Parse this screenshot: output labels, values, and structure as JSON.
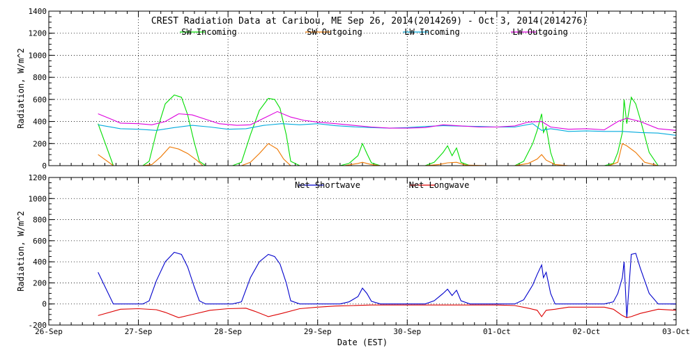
{
  "chart_data": [
    {
      "type": "line",
      "title": "CREST Radiation Data at Caribou, ME   Sep 26, 2014(2014269) - Oct  3, 2014(2014276)",
      "xlabel": "",
      "ylabel": "Radiation, W/m^2",
      "xlim": [
        0,
        7
      ],
      "ylim": [
        0,
        1400
      ],
      "yticks": [
        0,
        200,
        400,
        600,
        800,
        1000,
        1200,
        1400
      ],
      "grid": true,
      "legend": "top",
      "series": [
        {
          "name": "SW Incoming",
          "color": "#00dd00",
          "x": [
            0.55,
            0.72,
            0.9,
            1.05,
            1.12,
            1.2,
            1.3,
            1.4,
            1.48,
            1.55,
            1.62,
            1.68,
            1.75,
            1.85,
            2.05,
            2.15,
            2.25,
            2.35,
            2.45,
            2.52,
            2.58,
            2.65,
            2.7,
            2.8,
            3.0,
            3.25,
            3.35,
            3.45,
            3.5,
            3.55,
            3.6,
            3.7,
            3.9,
            4.2,
            4.3,
            4.4,
            4.45,
            4.5,
            4.55,
            4.6,
            4.7,
            4.9,
            5.2,
            5.3,
            5.4,
            5.45,
            5.5,
            5.52,
            5.55,
            5.6,
            5.65,
            5.7,
            5.8,
            6.1,
            6.2,
            6.3,
            6.35,
            6.4,
            6.42,
            6.45,
            6.5,
            6.55,
            6.6,
            6.7,
            6.8,
            7.0
          ],
          "y": [
            380,
            0,
            0,
            0,
            40,
            300,
            560,
            640,
            620,
            460,
            220,
            40,
            0,
            0,
            0,
            30,
            280,
            500,
            610,
            600,
            520,
            280,
            40,
            0,
            0,
            0,
            20,
            90,
            200,
            110,
            25,
            0,
            0,
            0,
            30,
            120,
            180,
            90,
            160,
            30,
            0,
            0,
            0,
            40,
            200,
            320,
            470,
            300,
            350,
            120,
            0,
            0,
            0,
            0,
            0,
            20,
            120,
            300,
            600,
            380,
            620,
            560,
            420,
            120,
            0,
            0
          ]
        },
        {
          "name": "SW Outgoing",
          "color": "#ee7700",
          "x": [
            0.55,
            0.72,
            0.9,
            1.05,
            1.15,
            1.25,
            1.35,
            1.45,
            1.55,
            1.65,
            1.72,
            1.85,
            2.05,
            2.15,
            2.25,
            2.35,
            2.45,
            2.55,
            2.62,
            2.7,
            2.8,
            3.0,
            3.3,
            3.45,
            3.5,
            3.6,
            3.7,
            3.9,
            4.2,
            4.35,
            4.45,
            4.55,
            4.65,
            4.9,
            5.2,
            5.35,
            5.45,
            5.5,
            5.55,
            5.65,
            5.8,
            6.1,
            6.25,
            6.35,
            6.4,
            6.45,
            6.55,
            6.65,
            6.8,
            7.0
          ],
          "y": [
            100,
            0,
            0,
            0,
            10,
            80,
            170,
            150,
            110,
            50,
            0,
            0,
            0,
            0,
            30,
            110,
            200,
            150,
            60,
            0,
            0,
            0,
            0,
            20,
            30,
            10,
            0,
            0,
            0,
            10,
            25,
            30,
            5,
            0,
            0,
            20,
            60,
            100,
            50,
            10,
            0,
            0,
            0,
            30,
            200,
            180,
            120,
            30,
            0,
            0
          ]
        },
        {
          "name": "LW Incoming",
          "color": "#00aadd",
          "x": [
            0.55,
            0.8,
            1.0,
            1.2,
            1.4,
            1.6,
            1.8,
            2.0,
            2.2,
            2.4,
            2.6,
            2.8,
            3.0,
            3.2,
            3.4,
            3.6,
            3.8,
            4.0,
            4.2,
            4.4,
            4.6,
            4.8,
            5.0,
            5.2,
            5.4,
            5.5,
            5.6,
            5.8,
            6.0,
            6.2,
            6.4,
            6.6,
            6.8,
            7.0
          ],
          "y": [
            370,
            335,
            330,
            320,
            345,
            365,
            350,
            330,
            335,
            365,
            380,
            370,
            380,
            362,
            352,
            345,
            340,
            345,
            355,
            362,
            358,
            355,
            350,
            350,
            380,
            320,
            335,
            310,
            315,
            310,
            310,
            300,
            295,
            275
          ]
        },
        {
          "name": "LW Outgoing",
          "color": "#dd00dd",
          "x": [
            0.55,
            0.7,
            0.8,
            1.0,
            1.15,
            1.3,
            1.45,
            1.6,
            1.75,
            1.9,
            2.1,
            2.25,
            2.4,
            2.55,
            2.7,
            2.85,
            3.0,
            3.2,
            3.4,
            3.6,
            3.8,
            4.0,
            4.2,
            4.4,
            4.6,
            4.8,
            5.0,
            5.2,
            5.35,
            5.5,
            5.6,
            5.8,
            6.0,
            6.2,
            6.35,
            6.45,
            6.6,
            6.8,
            7.0
          ],
          "y": [
            470,
            420,
            385,
            380,
            370,
            400,
            470,
            460,
            420,
            380,
            365,
            370,
            430,
            490,
            440,
            410,
            395,
            380,
            365,
            350,
            340,
            340,
            345,
            370,
            360,
            350,
            350,
            360,
            395,
            400,
            350,
            330,
            335,
            325,
            400,
            430,
            400,
            335,
            320
          ]
        }
      ]
    },
    {
      "type": "line",
      "title": "",
      "xlabel": "Date (EST)",
      "ylabel": "Radiation, W/m^2",
      "xlim": [
        0,
        7
      ],
      "ylim": [
        -200,
        1200
      ],
      "yticks": [
        -200,
        0,
        200,
        400,
        600,
        800,
        1000,
        1200
      ],
      "xticks": [
        "26-Sep",
        "27-Sep",
        "28-Sep",
        "29-Sep",
        "30-Sep",
        "01-Oct",
        "02-Oct",
        "03-Oct"
      ],
      "grid": true,
      "legend": "top",
      "series": [
        {
          "name": "Net Shortwave",
          "color": "#0000cc",
          "x": [
            0.55,
            0.72,
            0.9,
            1.05,
            1.12,
            1.2,
            1.3,
            1.4,
            1.48,
            1.55,
            1.62,
            1.68,
            1.75,
            1.85,
            2.05,
            2.15,
            2.25,
            2.35,
            2.45,
            2.52,
            2.58,
            2.65,
            2.7,
            2.8,
            3.0,
            3.25,
            3.35,
            3.45,
            3.5,
            3.55,
            3.6,
            3.7,
            3.9,
            4.2,
            4.3,
            4.4,
            4.45,
            4.5,
            4.55,
            4.6,
            4.7,
            4.9,
            5.2,
            5.3,
            5.4,
            5.45,
            5.5,
            5.52,
            5.55,
            5.6,
            5.65,
            5.7,
            5.8,
            6.1,
            6.2,
            6.3,
            6.35,
            6.4,
            6.42,
            6.45,
            6.5,
            6.55,
            6.6,
            6.7,
            6.8,
            7.0
          ],
          "y": [
            300,
            0,
            0,
            0,
            30,
            220,
            400,
            490,
            470,
            350,
            170,
            30,
            0,
            0,
            0,
            20,
            250,
            400,
            470,
            450,
            380,
            200,
            30,
            0,
            0,
            0,
            20,
            70,
            150,
            100,
            25,
            0,
            0,
            0,
            30,
            100,
            140,
            80,
            130,
            30,
            0,
            0,
            0,
            40,
            180,
            280,
            370,
            250,
            300,
            100,
            0,
            0,
            0,
            0,
            0,
            20,
            100,
            250,
            400,
            -130,
            470,
            480,
            340,
            100,
            0,
            0
          ]
        },
        {
          "name": "Net Longwave",
          "color": "#dd0000",
          "x": [
            0.55,
            0.8,
            1.0,
            1.2,
            1.3,
            1.45,
            1.6,
            1.8,
            2.0,
            2.2,
            2.3,
            2.45,
            2.6,
            2.8,
            3.0,
            3.2,
            3.4,
            3.6,
            3.8,
            4.0,
            4.2,
            4.4,
            4.6,
            4.8,
            5.0,
            5.2,
            5.35,
            5.45,
            5.5,
            5.55,
            5.65,
            5.8,
            6.0,
            6.2,
            6.3,
            6.4,
            6.45,
            6.5,
            6.6,
            6.8,
            7.0
          ],
          "y": [
            -110,
            -50,
            -45,
            -55,
            -80,
            -130,
            -100,
            -60,
            -45,
            -40,
            -70,
            -120,
            -90,
            -45,
            -30,
            -20,
            -15,
            -10,
            -10,
            -10,
            -10,
            -10,
            -10,
            -10,
            -10,
            -15,
            -40,
            -60,
            -120,
            -60,
            -50,
            -30,
            -30,
            -30,
            -50,
            -110,
            -130,
            -120,
            -90,
            -50,
            -60
          ]
        }
      ]
    }
  ]
}
